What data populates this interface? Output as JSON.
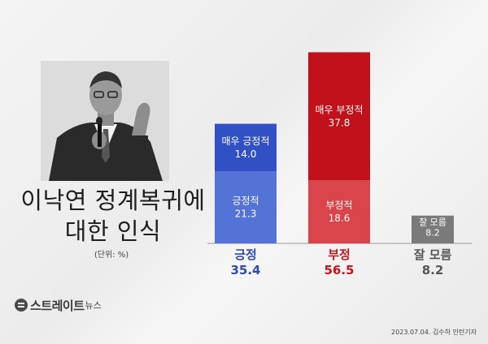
{
  "headline": {
    "line1": "이낙연 정계복귀에",
    "line2": "대한 인식",
    "unit_note": "(단위: %)"
  },
  "photo": {
    "alt": "person-photo-grayscale"
  },
  "colors": {
    "very_positive": "#3150c4",
    "positive": "#5473d6",
    "very_negative": "#c1121b",
    "negative": "#d9454a",
    "dont_know": "#7a7a7a",
    "positive_total_text": "#2f4ab0",
    "negative_total_text": "#c8161f",
    "dont_know_total_text": "#555555"
  },
  "chart_data": {
    "type": "bar",
    "stacked": true,
    "categories": [
      "긍정",
      "부정",
      "잘 모름"
    ],
    "totals": [
      35.4,
      56.5,
      8.2
    ],
    "series": [
      {
        "name": "매우 긍정적",
        "category": "긍정",
        "value": 14.0
      },
      {
        "name": "긍정적",
        "category": "긍정",
        "value": 21.3
      },
      {
        "name": "매우 부정적",
        "category": "부정",
        "value": 37.8
      },
      {
        "name": "부정적",
        "category": "부정",
        "value": 18.6
      },
      {
        "name": "잘 모름",
        "category": "잘 모름",
        "value": 8.2
      }
    ],
    "ylim": [
      0,
      56.5
    ],
    "grid": false,
    "legend": "none"
  },
  "brand": {
    "name": "스트레이트",
    "suffix": "뉴스"
  },
  "credit": "2023.07.04. 김수하 인턴기자"
}
